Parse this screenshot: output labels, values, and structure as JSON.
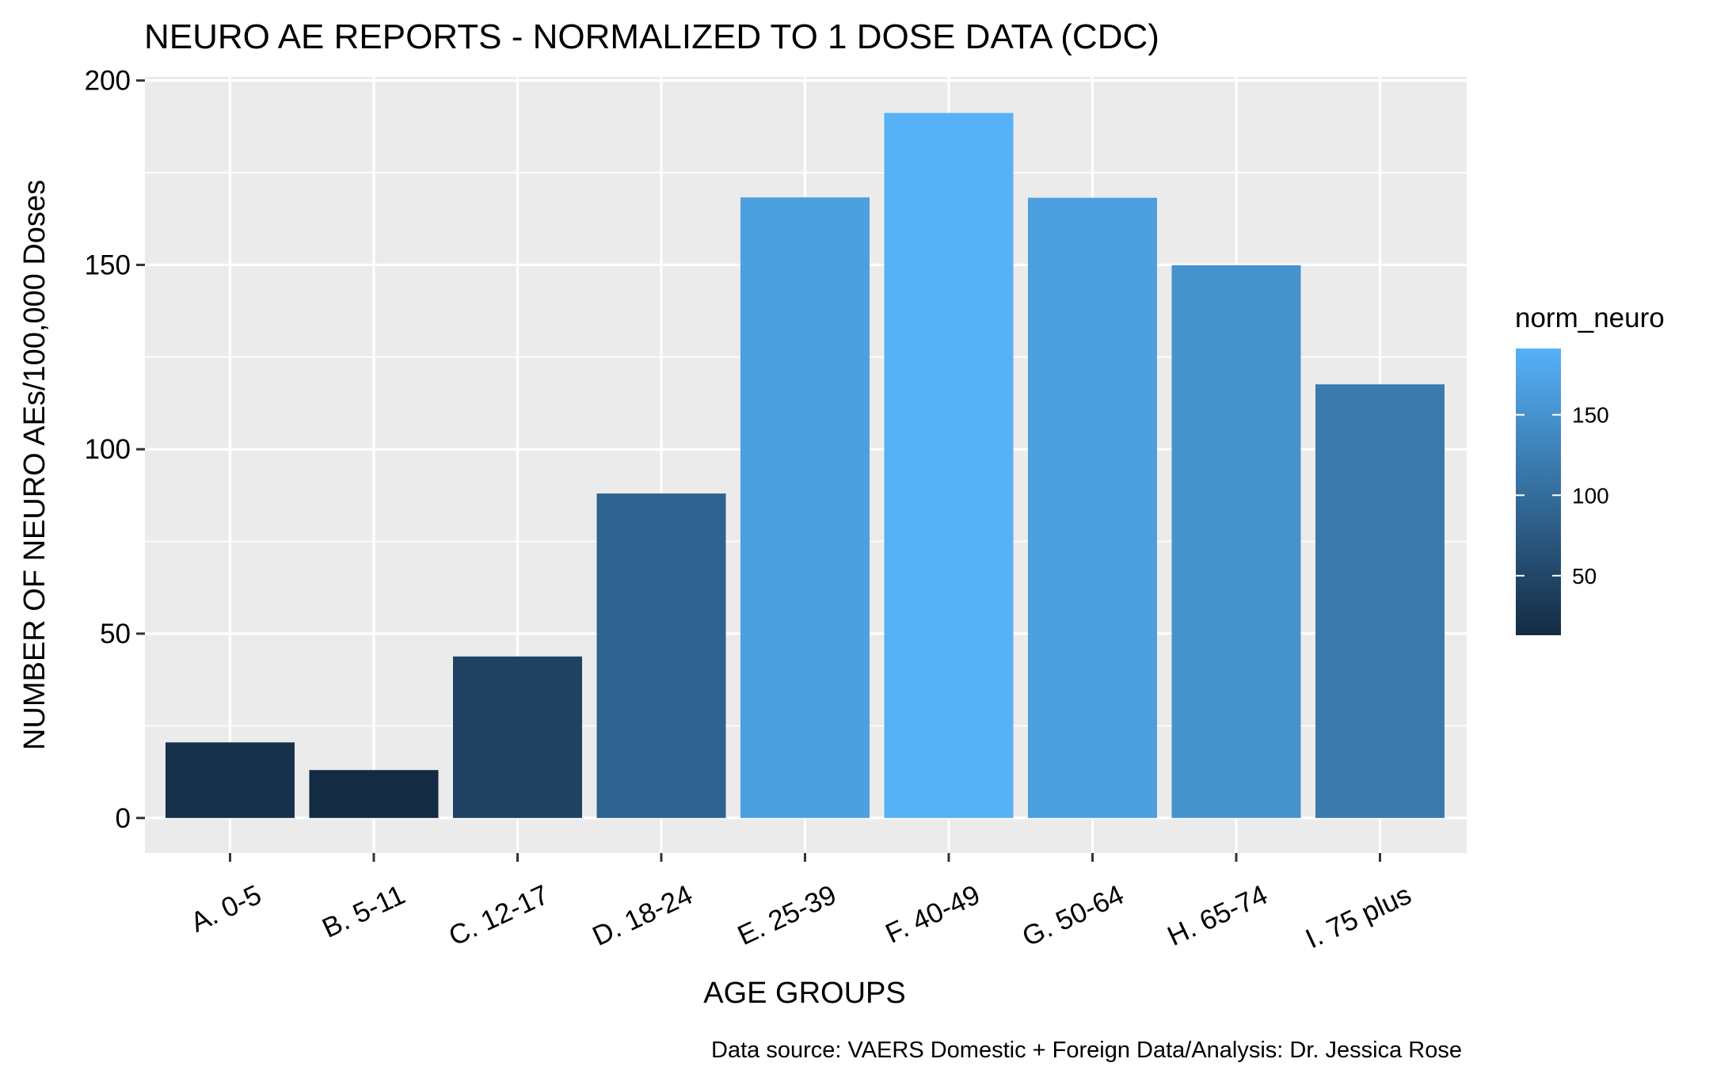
{
  "chart_data": {
    "type": "bar",
    "title": "NEURO AE REPORTS - NORMALIZED TO 1 DOSE DATA (CDC)",
    "xlabel": "AGE GROUPS",
    "ylabel": "NUMBER OF NEURO AEs/100,000 Doses",
    "caption": "Data source: VAERS Domestic + Foreign Data/Analysis: Dr. Jessica Rose",
    "categories": [
      "A. 0-5",
      "B. 5-11",
      "C. 12-17",
      "D. 18-24",
      "E. 25-39",
      "F. 40-49",
      "G. 50-64",
      "H. 65-74",
      "I. 75 plus"
    ],
    "values": [
      20.5,
      13,
      43.8,
      88,
      168.3,
      191.2,
      168.2,
      149.9,
      117.6
    ],
    "ylim": [
      -9.5,
      201
    ],
    "yticks": [
      "0",
      "50",
      "100",
      "150",
      "200"
    ],
    "ytick_values": [
      0,
      50,
      100,
      150,
      200
    ],
    "grid": true,
    "panel_background": "#EBEBEB",
    "legend": {
      "title": "norm_neuro",
      "position": "right",
      "ticks": [
        "50",
        "100",
        "150"
      ],
      "tick_values": [
        50,
        100,
        150
      ],
      "range": [
        13,
        191.2
      ],
      "color_low": "#132B43",
      "color_high": "#56B1F7"
    }
  }
}
